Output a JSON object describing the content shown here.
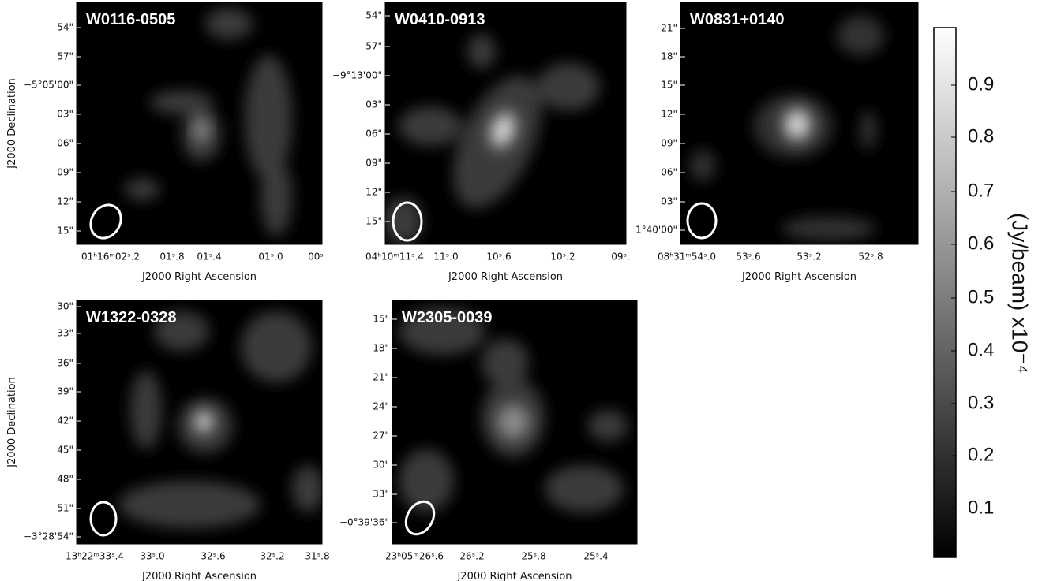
{
  "panels": [
    {
      "title": "W0116-0505",
      "y_ticks": [
        "54\"",
        "57\"",
        "−5°05'00\"",
        "03\"",
        "06\"",
        "09\"",
        "12\"",
        "15\""
      ],
      "x_ticks": [
        "01ʰ16ᵐ02ˢ.2",
        "01ˢ.8",
        "01ˢ.4",
        "01ˢ.0",
        "00ˢ"
      ],
      "x_label": "J2000 Right Ascension",
      "y_label": "J2000 Declination"
    },
    {
      "title": "W0410-0913",
      "y_ticks": [
        "54\"",
        "57\"",
        "−9°13'00\"",
        "03\"",
        "06\"",
        "09\"",
        "12\"",
        "15\""
      ],
      "x_ticks": [
        "04ʰ10ᵐ11ˢ.4",
        "11ˢ.0",
        "10ˢ.6",
        "10ˢ.2",
        "09ˢ."
      ],
      "x_label": "J2000 Right Ascension"
    },
    {
      "title": "W0831+0140",
      "y_ticks": [
        "21\"",
        "18\"",
        "15\"",
        "12\"",
        "09\"",
        "06\"",
        "03\"",
        "1°40'00\""
      ],
      "x_ticks": [
        "08ʰ31ᵐ54ˢ.0",
        "53ˢ.6",
        "53ˢ.2",
        "52ˢ.8"
      ],
      "x_label": "J2000 Right Ascension"
    },
    {
      "title": "W1322-0328",
      "y_ticks": [
        "30\"",
        "33\"",
        "36\"",
        "39\"",
        "42\"",
        "45\"",
        "48\"",
        "51\"",
        "−3°28'54\""
      ],
      "x_ticks": [
        "13ʰ22ᵐ33ˢ.4",
        "33ˢ.0",
        "32ˢ.6",
        "32ˢ.2",
        "31ˢ.8"
      ],
      "x_label": "J2000 Right Ascension",
      "y_label": "J2000 Declination"
    },
    {
      "title": "W2305-0039",
      "y_ticks": [
        "15\"",
        "18\"",
        "21\"",
        "24\"",
        "27\"",
        "30\"",
        "33\"",
        "−0°39'36\""
      ],
      "x_ticks": [
        "23ʰ05ᵐ26ˢ.6",
        "26ˢ.2",
        "25ˢ.8",
        "25ˢ.4"
      ],
      "x_label": "J2000 Right Ascension"
    }
  ],
  "colorbar": {
    "label": "(Jy/beam) x10⁻⁴",
    "ticks": [
      "0.9",
      "0.8",
      "0.7",
      "0.6",
      "0.5",
      "0.4",
      "0.3",
      "0.2",
      "0.1"
    ]
  }
}
